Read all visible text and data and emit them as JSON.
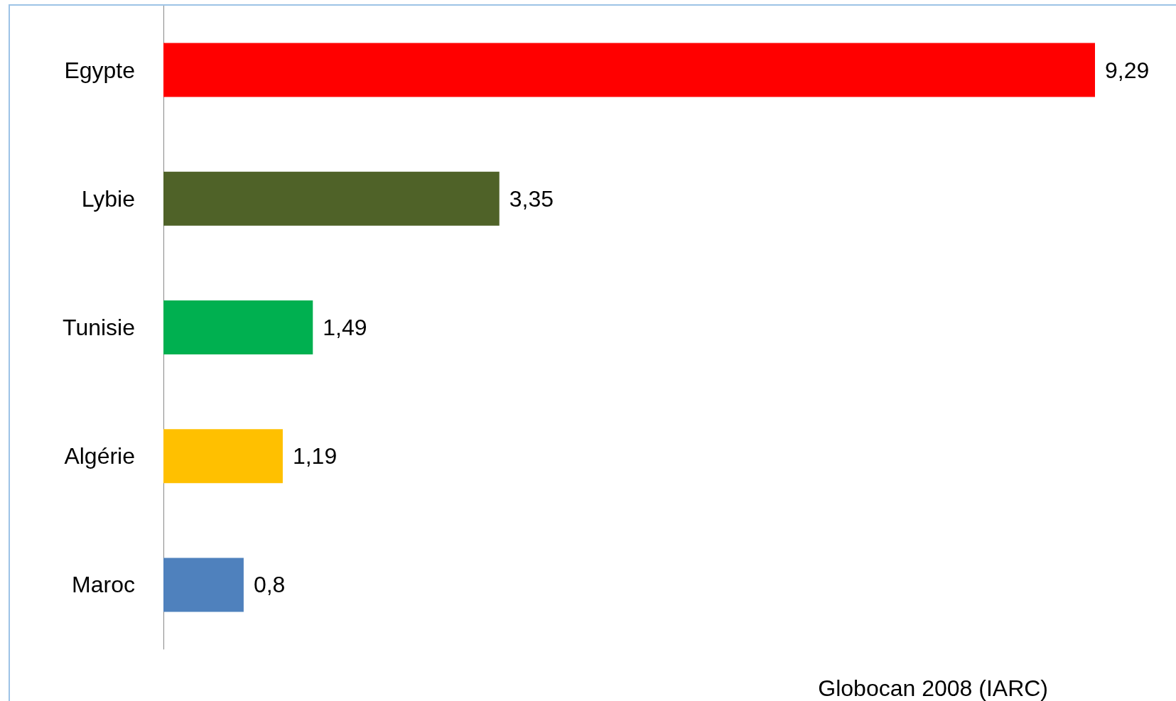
{
  "chart_data": {
    "type": "bar",
    "orientation": "horizontal",
    "categories": [
      "Egypte",
      "Lybie",
      "Tunisie",
      "Algérie",
      "Maroc"
    ],
    "values": [
      9.29,
      3.35,
      1.49,
      1.19,
      0.8
    ],
    "value_labels": [
      "9,29",
      "3,35",
      "1,49",
      "1,19",
      "0,8"
    ],
    "colors": [
      "#ff0000",
      "#4f6228",
      "#00b050",
      "#ffc000",
      "#4f81bd"
    ],
    "annotations": [
      "Globocan 2008 (IARC)"
    ]
  }
}
